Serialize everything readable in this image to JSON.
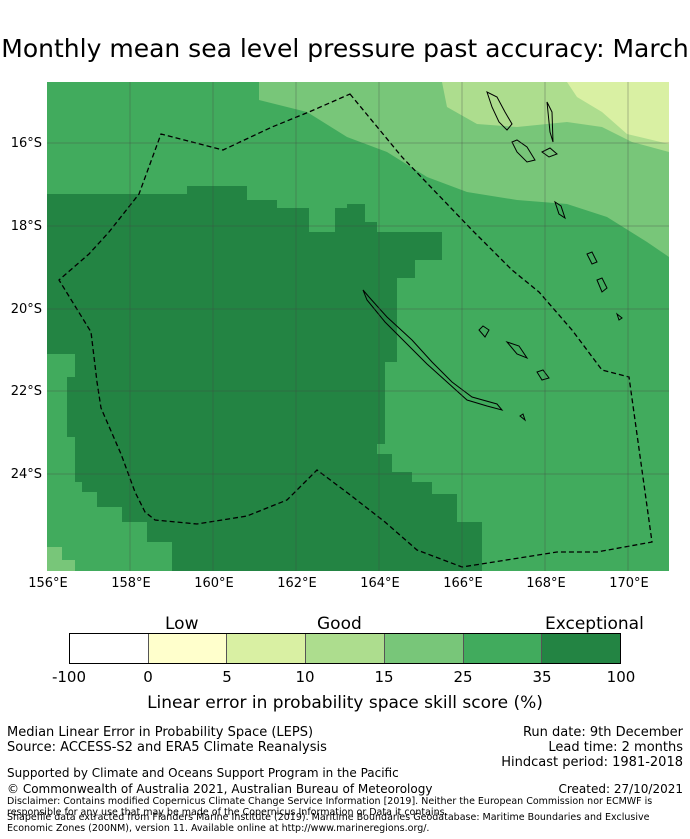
{
  "title": "Monthly mean sea level pressure past accuracy: March",
  "map": {
    "y_ticks": [
      "16°S",
      "18°S",
      "20°S",
      "22°S",
      "24°S"
    ],
    "x_ticks": [
      "156°E",
      "158°E",
      "160°E",
      "162°E",
      "164°E",
      "166°E",
      "168°E",
      "170°E"
    ],
    "lon_range": [
      156,
      171
    ],
    "lat_range": [
      -14.5,
      -26.3
    ]
  },
  "legend": {
    "categories": [
      "Low",
      "Good",
      "Exceptional"
    ],
    "tick_labels": [
      "-100",
      "0",
      "5",
      "10",
      "15",
      "25",
      "35",
      "100"
    ],
    "colors": [
      "#ffffff",
      "#ffffcc",
      "#d9f0a3",
      "#addd8e",
      "#78c679",
      "#41ab5d",
      "#238443"
    ],
    "label": "Linear error in probability space skill score (%)"
  },
  "footer": {
    "left1": "Median Linear Error in Probability Space (LEPS)",
    "left2": "Source: ACCESS-S2 and ERA5 Climate Reanalysis",
    "run_date": "Run date: 9th December",
    "lead_time": "Lead time: 2 months",
    "hindcast": "Hindcast period: 1981-2018",
    "supported": "Supported by Climate and Oceans Support Program in the Pacific",
    "copyright": "© Commonwealth of Australia 2021, Australian Bureau of Meteorology",
    "created": "Created: 27/10/2021",
    "disclaimer": "Disclaimer: Contains modified Copernicus Climate Change Service Information [2019]. Neither the European Commission nor ECMWF is responsible for any use that may be made of the Copernicus Information or Data it contains.",
    "shapefile": "Shapefile data extracted from Flanders Marine Institute (2019). Maritime Boundaries Geodatabase: Maritime Boundaries and Exclusive Economic Zones (200NM), version 11. Available online at http://www.marineregions.org/."
  }
}
